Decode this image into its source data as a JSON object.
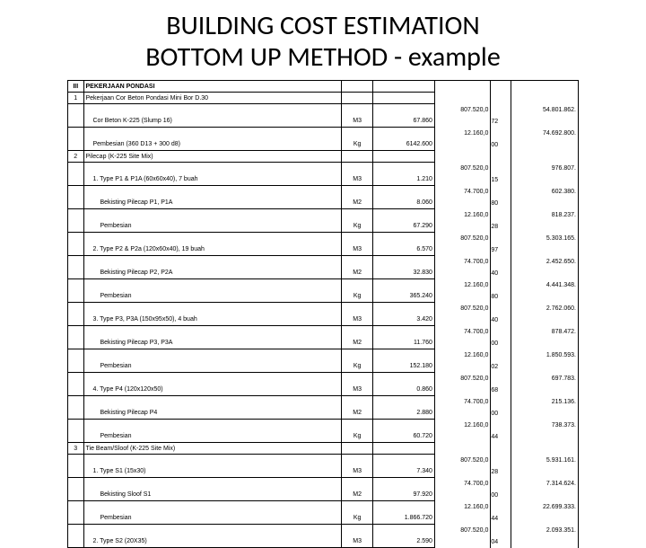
{
  "title_line1": "BUILDING COST ESTIMATION",
  "title_line2": "BOTTOM UP METHOD - example",
  "section": {
    "num": "III",
    "label": "PEKERJAAN PONDASI"
  },
  "groups": [
    {
      "num": "1",
      "label": "Pekerjaan Cor Beton Pondasi Mini Bor D.30",
      "rows": [
        {
          "desc": "Cor Beton K-225 (Slump 16)",
          "unit": "M3",
          "qty": "67.860",
          "p1": "807.520,0",
          "p2": "72",
          "amt": "54.801.862."
        },
        {
          "desc": "Pembesian (360 D13 + 300 d8)",
          "unit": "Kg",
          "qty": "6142.600",
          "p1": "12.160,0",
          "p2": "00",
          "amt": "74.692.800."
        }
      ]
    },
    {
      "num": "2",
      "label": "Pilecap (K-225 Site Mix)",
      "rows": [
        {
          "desc": "1. Type P1 & P1A (60x60x40), 7 buah",
          "unit": "M3",
          "qty": "1.210",
          "p1": "807.520,0",
          "p2": "15",
          "amt": "976.807."
        },
        {
          "desc": "Bekisting Pilecap P1, P1A",
          "indent": true,
          "unit": "M2",
          "qty": "8.060",
          "p1": "74.700,0",
          "p2": "80",
          "amt": "602.380."
        },
        {
          "desc": "Pembesian",
          "indent": true,
          "unit": "Kg",
          "qty": "67.290",
          "p1": "12.160,0",
          "p2": "28",
          "amt": "818.237."
        },
        {
          "desc": "2. Type P2 & P2a (120x60x40), 19 buah",
          "unit": "M3",
          "qty": "6.570",
          "p1": "807.520,0",
          "p2": "97",
          "amt": "5.303.165."
        },
        {
          "desc": "Bekisting Pilecap P2, P2A",
          "indent": true,
          "unit": "M2",
          "qty": "32.830",
          "p1": "74.700,0",
          "p2": "40",
          "amt": "2.452.650."
        },
        {
          "desc": "Pembesian",
          "indent": true,
          "unit": "Kg",
          "qty": "365.240",
          "p1": "12.160,0",
          "p2": "80",
          "amt": "4.441.348."
        },
        {
          "desc": "3. Type P3, P3A (150x95x50), 4 buah",
          "unit": "M3",
          "qty": "3.420",
          "p1": "807.520,0",
          "p2": "40",
          "amt": "2.762.060."
        },
        {
          "desc": "Bekisting Pilecap P3, P3A",
          "indent": true,
          "unit": "M2",
          "qty": "11.760",
          "p1": "74.700,0",
          "p2": "00",
          "amt": "878.472."
        },
        {
          "desc": "Pembesian",
          "indent": true,
          "unit": "Kg",
          "qty": "152.180",
          "p1": "12.160,0",
          "p2": "02",
          "amt": "1.850.593."
        },
        {
          "desc": "4. Type P4 (120x120x50)",
          "unit": "M3",
          "qty": "0.860",
          "p1": "807.520,0",
          "p2": "68",
          "amt": "697.783."
        },
        {
          "desc": "Bekisting Pilecap P4",
          "indent": true,
          "unit": "M2",
          "qty": "2.880",
          "p1": "74.700,0",
          "p2": "00",
          "amt": "215.136."
        },
        {
          "desc": "Pembesian",
          "indent": true,
          "unit": "Kg",
          "qty": "60.720",
          "p1": "12.160,0",
          "p2": "44",
          "amt": "738.373."
        }
      ]
    },
    {
      "num": "3",
      "label": "Tie Beam/Sloof (K-225 Site Mix)",
      "rows": [
        {
          "desc": "1. Type S1 (15x30)",
          "unit": "M3",
          "qty": "7.340",
          "p1": "807.520,0",
          "p2": "28",
          "amt": "5.931.161."
        },
        {
          "desc": "Bekisting Sloof S1",
          "indent": true,
          "unit": "M2",
          "qty": "97.920",
          "p1": "74.700,0",
          "p2": "00",
          "amt": "7.314.624."
        },
        {
          "desc": "Pembesian",
          "indent": true,
          "unit": "Kg",
          "qty": "1.866.720",
          "p1": "12.160,0",
          "p2": "44",
          "amt": "22.699.333."
        },
        {
          "desc": "2. Type S2 (20X35)",
          "unit": "M3",
          "qty": "2.590",
          "p1": "807.520,0",
          "p2": "04",
          "amt": "2.093.351."
        }
      ]
    }
  ]
}
